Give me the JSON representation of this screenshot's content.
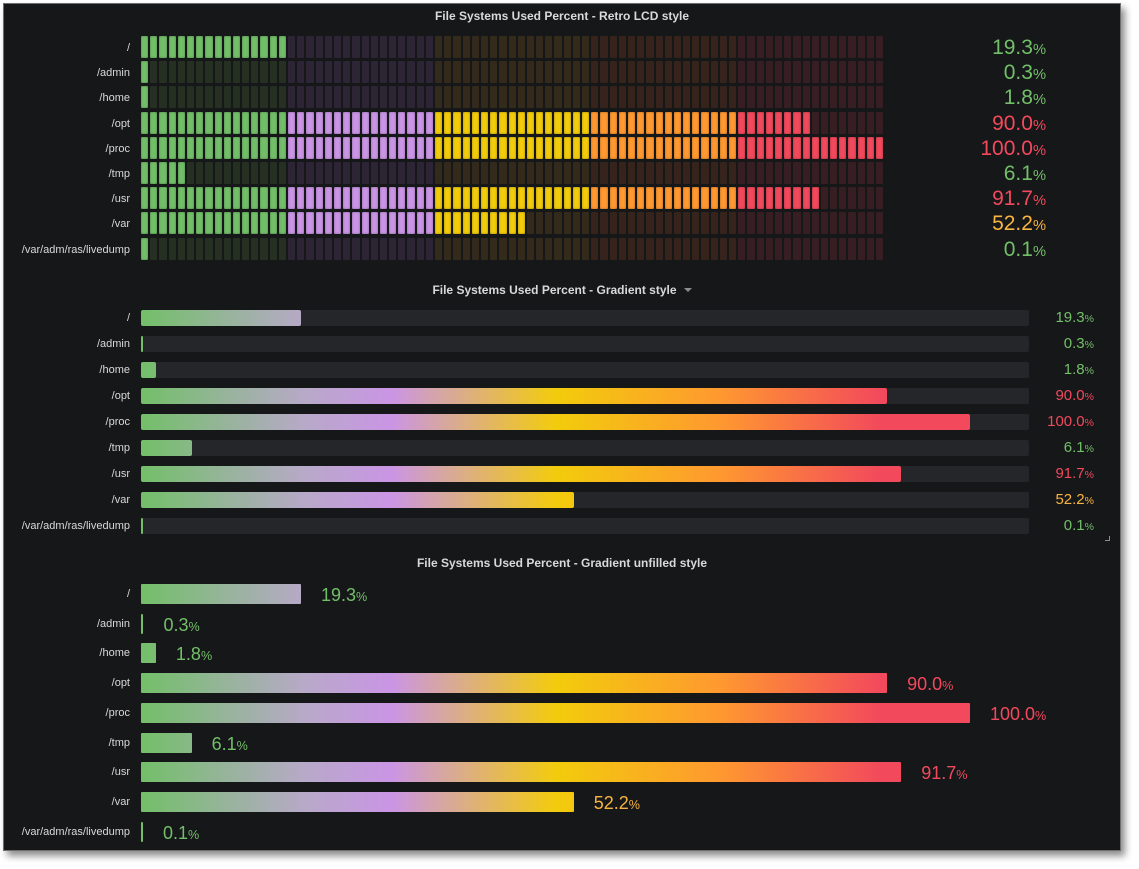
{
  "colors": {
    "green": "#73bf69",
    "purple": "#ca95e5",
    "yellow": "#f2cc0c",
    "orange": "#ff9830",
    "red": "#f2495c",
    "value_orange": "#f8b440"
  },
  "unit": "%",
  "panels": {
    "lcd": {
      "title": "File Systems Used Percent - Retro LCD style"
    },
    "gradient": {
      "title": "File Systems Used Percent - Gradient style",
      "menu_icon": "chevron-down-icon"
    },
    "unfilled": {
      "title": "File Systems Used Percent - Gradient unfilled style"
    }
  },
  "filesystems": [
    {
      "label": "/",
      "value": 19.3,
      "value_text": "19.3",
      "color": "#73bf69"
    },
    {
      "label": "/admin",
      "value": 0.3,
      "value_text": "0.3",
      "color": "#73bf69"
    },
    {
      "label": "/home",
      "value": 1.8,
      "value_text": "1.8",
      "color": "#73bf69"
    },
    {
      "label": "/opt",
      "value": 90.0,
      "value_text": "90.0",
      "color": "#f2495c"
    },
    {
      "label": "/proc",
      "value": 100.0,
      "value_text": "100.0",
      "color": "#f2495c"
    },
    {
      "label": "/tmp",
      "value": 6.1,
      "value_text": "6.1",
      "color": "#73bf69"
    },
    {
      "label": "/usr",
      "value": 91.7,
      "value_text": "91.7",
      "color": "#f2495c"
    },
    {
      "label": "/var",
      "value": 52.2,
      "value_text": "52.2",
      "color": "#f8b440"
    },
    {
      "label": "/var/adm/ras/livedump",
      "value": 0.1,
      "value_text": "0.1",
      "color": "#73bf69"
    }
  ]
}
